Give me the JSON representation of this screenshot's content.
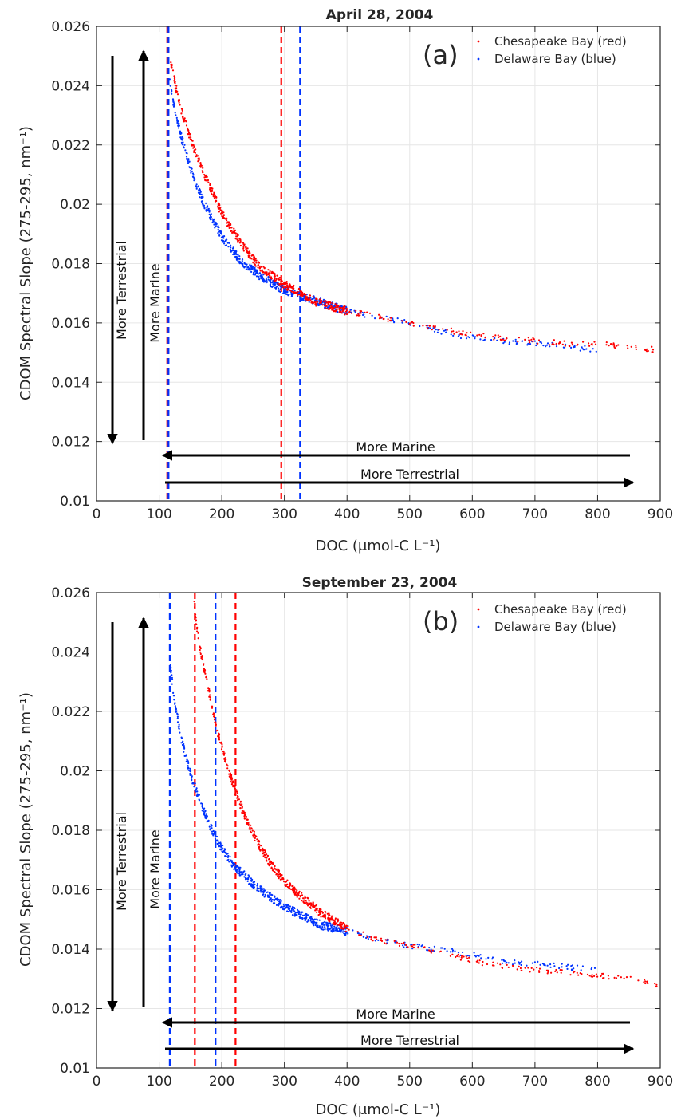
{
  "colors": {
    "chesapeake": "#ff0000",
    "delaware": "#0033ff",
    "axis": "#262626",
    "grid": "#e6e6e6",
    "arrow": "#000000"
  },
  "chart_data": [
    {
      "type": "scatter",
      "panel_label": "(a)",
      "title": "April 28, 2004",
      "xlabel": "DOC (μmol-C L⁻¹)",
      "ylabel": "CDOM Spectral Slope (275-295, nm⁻¹)",
      "xlim": [
        0,
        900
      ],
      "ylim": [
        0.01,
        0.026
      ],
      "xticks": [
        0,
        100,
        200,
        300,
        400,
        500,
        600,
        700,
        800,
        900
      ],
      "yticks": [
        0.01,
        0.012,
        0.014,
        0.016,
        0.018,
        0.02,
        0.022,
        0.024,
        0.026
      ],
      "ytick_labels": [
        "0.01",
        "0.012",
        "0.014",
        "0.016",
        "0.018",
        "0.02",
        "0.022",
        "0.024",
        "0.026"
      ],
      "grid": true,
      "legend_position": "top-right",
      "series": [
        {
          "name": "Chesapeake Bay (red)",
          "color": "#ff0000",
          "x": [
            118,
            125,
            135,
            150,
            170,
            200,
            230,
            260,
            300,
            350,
            400,
            450,
            500,
            550,
            600,
            650,
            700,
            750,
            800,
            850,
            890
          ],
          "y": [
            0.0249,
            0.0241,
            0.0232,
            0.0222,
            0.0211,
            0.0197,
            0.0187,
            0.0179,
            0.0173,
            0.0167,
            0.0164,
            0.0162,
            0.016,
            0.0158,
            0.0156,
            0.0155,
            0.0154,
            0.0153,
            0.0153,
            0.0152,
            0.0151
          ]
        },
        {
          "name": "Delaware Bay (blue)",
          "color": "#0033ff",
          "x": [
            117,
            125,
            135,
            150,
            170,
            200,
            230,
            260,
            300,
            330,
            370,
            400,
            450,
            500,
            550,
            600,
            700,
            800
          ],
          "y": [
            0.0241,
            0.0232,
            0.0223,
            0.0212,
            0.0201,
            0.0189,
            0.0181,
            0.0176,
            0.0171,
            0.0169,
            0.0166,
            0.0164,
            0.0162,
            0.016,
            0.0157,
            0.0155,
            0.0153,
            0.0151
          ]
        }
      ],
      "vlines": [
        {
          "x": 113,
          "color": "#ff0000"
        },
        {
          "x": 115,
          "color": "#0033ff"
        },
        {
          "x": 295,
          "color": "#ff0000"
        },
        {
          "x": 325,
          "color": "#0033ff"
        }
      ],
      "annotations": {
        "vertical_down": "More Terrestrial",
        "vertical_up": "More Marine",
        "horizontal_left": "More Marine",
        "horizontal_right": "More Terrestrial"
      }
    },
    {
      "type": "scatter",
      "panel_label": "(b)",
      "title": "September 23, 2004",
      "xlabel": "DOC (μmol-C L⁻¹)",
      "ylabel": "CDOM Spectral Slope (275-295, nm⁻¹)",
      "xlim": [
        0,
        900
      ],
      "ylim": [
        0.01,
        0.026
      ],
      "xticks": [
        0,
        100,
        200,
        300,
        400,
        500,
        600,
        700,
        800,
        900
      ],
      "yticks": [
        0.01,
        0.012,
        0.014,
        0.016,
        0.018,
        0.02,
        0.022,
        0.024,
        0.026
      ],
      "ytick_labels": [
        "0.01",
        "0.012",
        "0.014",
        "0.016",
        "0.018",
        "0.02",
        "0.022",
        "0.024",
        "0.026"
      ],
      "grid": true,
      "legend_position": "top-right",
      "series": [
        {
          "name": "Chesapeake Bay (red)",
          "color": "#ff0000",
          "x": [
            155,
            160,
            170,
            180,
            190,
            200,
            210,
            220,
            240,
            260,
            280,
            300,
            330,
            360,
            400,
            450,
            500,
            550,
            600,
            650,
            700,
            750,
            800,
            850,
            895
          ],
          "y": [
            0.0258,
            0.0248,
            0.0236,
            0.0226,
            0.0216,
            0.0208,
            0.0201,
            0.0194,
            0.0183,
            0.0175,
            0.0168,
            0.0163,
            0.0157,
            0.0152,
            0.0147,
            0.0143,
            0.0141,
            0.0139,
            0.0136,
            0.0134,
            0.0133,
            0.0132,
            0.0131,
            0.013,
            0.0128
          ]
        },
        {
          "name": "Delaware Bay (blue)",
          "color": "#0033ff",
          "x": [
            118,
            125,
            135,
            150,
            165,
            180,
            200,
            220,
            250,
            280,
            320,
            360,
            400,
            450,
            500,
            550,
            600,
            650,
            700,
            750,
            800
          ],
          "y": [
            0.0235,
            0.0223,
            0.0211,
            0.0199,
            0.019,
            0.0182,
            0.0174,
            0.0168,
            0.0162,
            0.0157,
            0.0152,
            0.0148,
            0.0146,
            0.0143,
            0.0141,
            0.014,
            0.0138,
            0.0136,
            0.0135,
            0.0134,
            0.0133
          ]
        }
      ],
      "vlines": [
        {
          "x": 117,
          "color": "#0033ff"
        },
        {
          "x": 157,
          "color": "#ff0000"
        },
        {
          "x": 190,
          "color": "#0033ff"
        },
        {
          "x": 222,
          "color": "#ff0000"
        }
      ],
      "annotations": {
        "vertical_down": "More Terrestrial",
        "vertical_up": "More Marine",
        "horizontal_left": "More Marine",
        "horizontal_right": "More Terrestrial"
      }
    }
  ]
}
